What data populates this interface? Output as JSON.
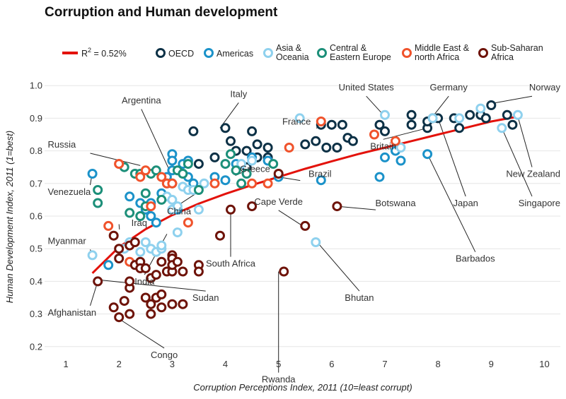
{
  "chart_data": {
    "type": "scatter",
    "title": "Corruption and Human development",
    "xlabel": "Corruption Perceptions Index, 2011 (10=least corrupt)",
    "ylabel": "Human Development Index, 2011 (1=best)",
    "xlim": [
      0.6,
      10.3
    ],
    "ylim": [
      0.18,
      1.02
    ],
    "x_ticks": [
      1,
      2,
      3,
      4,
      5,
      6,
      7,
      8,
      9,
      10
    ],
    "y_ticks": [
      0.2,
      0.3,
      0.4,
      0.5,
      0.6,
      0.7,
      0.8,
      0.9,
      1.0
    ],
    "x_tick_labels": [
      "1",
      "2",
      "3",
      "4",
      "5",
      "6",
      "7",
      "8",
      "9",
      "10"
    ],
    "y_tick_labels": [
      "0.2",
      "0.3",
      "0.4",
      "0.5",
      "0.6",
      "0.7",
      "0.8",
      "0.9",
      "1.0"
    ],
    "grid": "horizontal",
    "trend": {
      "label_base": "R",
      "label_sup": "2",
      "label_rest": " = 0.52%",
      "color": "#e3120b",
      "points": [
        [
          1.5,
          0.425
        ],
        [
          2,
          0.505
        ],
        [
          2.5,
          0.56
        ],
        [
          3,
          0.603
        ],
        [
          3.5,
          0.638
        ],
        [
          4,
          0.668
        ],
        [
          4.5,
          0.695
        ],
        [
          5,
          0.72
        ],
        [
          5.5,
          0.745
        ],
        [
          6,
          0.768
        ],
        [
          6.5,
          0.79
        ],
        [
          7,
          0.81
        ],
        [
          7.5,
          0.83
        ],
        [
          8,
          0.85
        ],
        [
          8.5,
          0.87
        ],
        [
          9,
          0.89
        ],
        [
          9.5,
          0.905
        ]
      ]
    },
    "series": [
      {
        "name_lines": [
          "OECD"
        ],
        "color": "#0d3146",
        "points": [
          [
            3.4,
            0.86
          ],
          [
            3.5,
            0.76
          ],
          [
            3.8,
            0.78
          ],
          [
            4.0,
            0.87
          ],
          [
            4.1,
            0.83
          ],
          [
            4.2,
            0.8
          ],
          [
            4.4,
            0.8
          ],
          [
            4.4,
            0.75
          ],
          [
            4.5,
            0.86
          ],
          [
            4.6,
            0.78
          ],
          [
            4.6,
            0.82
          ],
          [
            4.8,
            0.78
          ],
          [
            4.8,
            0.81
          ],
          [
            5.5,
            0.82
          ],
          [
            5.7,
            0.83
          ],
          [
            5.8,
            0.88
          ],
          [
            5.9,
            0.81
          ],
          [
            6.0,
            0.88
          ],
          [
            6.1,
            0.81
          ],
          [
            6.2,
            0.88
          ],
          [
            6.3,
            0.84
          ],
          [
            6.4,
            0.83
          ],
          [
            6.9,
            0.88
          ],
          [
            7.0,
            0.86
          ],
          [
            7.5,
            0.91
          ],
          [
            7.5,
            0.88
          ],
          [
            7.8,
            0.87
          ],
          [
            7.8,
            0.89
          ],
          [
            7.9,
            0.9
          ],
          [
            8.0,
            0.9
          ],
          [
            8.3,
            0.9
          ],
          [
            8.4,
            0.87
          ],
          [
            8.6,
            0.91
          ],
          [
            8.8,
            0.91
          ],
          [
            8.9,
            0.9
          ],
          [
            9.0,
            0.94
          ],
          [
            9.3,
            0.91
          ],
          [
            9.4,
            0.88
          ]
        ]
      },
      {
        "name_lines": [
          "Americas"
        ],
        "color": "#1b92c9",
        "points": [
          [
            1.5,
            0.73
          ],
          [
            1.8,
            0.45
          ],
          [
            2.2,
            0.66
          ],
          [
            2.4,
            0.64
          ],
          [
            2.5,
            0.62
          ],
          [
            2.6,
            0.64
          ],
          [
            2.6,
            0.6
          ],
          [
            2.7,
            0.58
          ],
          [
            2.8,
            0.67
          ],
          [
            2.9,
            0.72
          ],
          [
            3.0,
            0.79
          ],
          [
            3.0,
            0.77
          ],
          [
            3.0,
            0.74
          ],
          [
            3.1,
            0.62
          ],
          [
            3.2,
            0.76
          ],
          [
            3.2,
            0.73
          ],
          [
            3.3,
            0.77
          ],
          [
            3.3,
            0.72
          ],
          [
            3.4,
            0.7
          ],
          [
            3.8,
            0.72
          ],
          [
            4.0,
            0.71
          ],
          [
            4.2,
            0.76
          ],
          [
            4.5,
            0.78
          ],
          [
            4.8,
            0.77
          ],
          [
            5.0,
            0.72
          ],
          [
            5.8,
            0.71
          ],
          [
            6.9,
            0.72
          ],
          [
            7.0,
            0.78
          ],
          [
            7.2,
            0.8
          ],
          [
            7.3,
            0.77
          ],
          [
            7.8,
            0.79
          ]
        ]
      },
      {
        "name_lines": [
          "Asia &",
          "Oceania"
        ],
        "color": "#8fd1ee",
        "points": [
          [
            1.5,
            0.48
          ],
          [
            1.6,
            0.4
          ],
          [
            2.1,
            0.5
          ],
          [
            2.2,
            0.52
          ],
          [
            2.4,
            0.49
          ],
          [
            2.5,
            0.52
          ],
          [
            2.6,
            0.5
          ],
          [
            2.7,
            0.49
          ],
          [
            2.8,
            0.5
          ],
          [
            2.8,
            0.51
          ],
          [
            2.9,
            0.66
          ],
          [
            3.0,
            0.62
          ],
          [
            3.0,
            0.65
          ],
          [
            3.1,
            0.55
          ],
          [
            3.1,
            0.63
          ],
          [
            3.2,
            0.69
          ],
          [
            3.3,
            0.68
          ],
          [
            3.4,
            0.68
          ],
          [
            3.5,
            0.62
          ],
          [
            3.6,
            0.7
          ],
          [
            4.3,
            0.76
          ],
          [
            4.5,
            0.77
          ],
          [
            5.7,
            0.52
          ],
          [
            5.4,
            0.9
          ],
          [
            7.0,
            0.91
          ],
          [
            7.3,
            0.81
          ],
          [
            7.9,
            0.9
          ],
          [
            8.4,
            0.9
          ],
          [
            8.8,
            0.93
          ],
          [
            9.2,
            0.87
          ],
          [
            9.5,
            0.91
          ]
        ]
      },
      {
        "name_lines": [
          "Central &",
          "Eastern Europe"
        ],
        "color": "#1c8f79",
        "points": [
          [
            1.6,
            0.68
          ],
          [
            1.6,
            0.64
          ],
          [
            2.1,
            0.75
          ],
          [
            2.2,
            0.61
          ],
          [
            2.3,
            0.73
          ],
          [
            2.4,
            0.73
          ],
          [
            2.4,
            0.6
          ],
          [
            2.5,
            0.63
          ],
          [
            2.5,
            0.67
          ],
          [
            2.6,
            0.73
          ],
          [
            2.7,
            0.74
          ],
          [
            2.8,
            0.65
          ],
          [
            2.9,
            0.7
          ],
          [
            3.0,
            0.7
          ],
          [
            3.1,
            0.74
          ],
          [
            3.2,
            0.73
          ],
          [
            3.3,
            0.76
          ],
          [
            3.5,
            0.68
          ],
          [
            4.0,
            0.76
          ],
          [
            4.1,
            0.79
          ],
          [
            4.2,
            0.74
          ],
          [
            4.4,
            0.73
          ],
          [
            4.3,
            0.7
          ],
          [
            4.9,
            0.76
          ]
        ]
      },
      {
        "name_lines": [
          "Middle East &",
          "north Africa"
        ],
        "color": "#f0532c",
        "points": [
          [
            1.8,
            0.57
          ],
          [
            2.0,
            0.76
          ],
          [
            2.0,
            0.76
          ],
          [
            2.2,
            0.46
          ],
          [
            2.4,
            0.72
          ],
          [
            2.5,
            0.74
          ],
          [
            2.6,
            0.63
          ],
          [
            2.8,
            0.72
          ],
          [
            2.9,
            0.7
          ],
          [
            3.0,
            0.7
          ],
          [
            3.3,
            0.58
          ],
          [
            3.8,
            0.7
          ],
          [
            4.5,
            0.7
          ],
          [
            4.8,
            0.7
          ],
          [
            5.2,
            0.81
          ],
          [
            5.8,
            0.89
          ],
          [
            6.8,
            0.85
          ],
          [
            7.2,
            0.83
          ]
        ]
      },
      {
        "name_lines": [
          "Sub-Saharan",
          "Africa"
        ],
        "color": "#6e1309",
        "points": [
          [
            1.6,
            0.4
          ],
          [
            1.9,
            0.54
          ],
          [
            1.9,
            0.32
          ],
          [
            2.0,
            0.29
          ],
          [
            2.0,
            0.47
          ],
          [
            2.0,
            0.5
          ],
          [
            2.1,
            0.34
          ],
          [
            2.2,
            0.3
          ],
          [
            2.2,
            0.38
          ],
          [
            2.2,
            0.4
          ],
          [
            2.2,
            0.51
          ],
          [
            2.3,
            0.45
          ],
          [
            2.3,
            0.52
          ],
          [
            2.4,
            0.46
          ],
          [
            2.4,
            0.44
          ],
          [
            2.5,
            0.44
          ],
          [
            2.5,
            0.35
          ],
          [
            2.6,
            0.41
          ],
          [
            2.6,
            0.33
          ],
          [
            2.6,
            0.3
          ],
          [
            2.7,
            0.42
          ],
          [
            2.7,
            0.35
          ],
          [
            2.8,
            0.36
          ],
          [
            2.8,
            0.32
          ],
          [
            2.8,
            0.46
          ],
          [
            2.9,
            0.43
          ],
          [
            3.0,
            0.48
          ],
          [
            3.0,
            0.47
          ],
          [
            3.0,
            0.43
          ],
          [
            3.0,
            0.45
          ],
          [
            3.0,
            0.33
          ],
          [
            3.1,
            0.46
          ],
          [
            3.2,
            0.33
          ],
          [
            3.2,
            0.43
          ],
          [
            3.5,
            0.45
          ],
          [
            3.5,
            0.43
          ],
          [
            3.9,
            0.54
          ],
          [
            4.1,
            0.62
          ],
          [
            4.5,
            0.63
          ],
          [
            5.0,
            0.73
          ],
          [
            5.1,
            0.43
          ],
          [
            5.5,
            0.57
          ],
          [
            6.1,
            0.63
          ]
        ]
      }
    ],
    "annotations": [
      {
        "label": "Italy",
        "point": [
          3.9,
          0.87
        ],
        "text": [
          4.25,
          0.965
        ],
        "anchor": "middle"
      },
      {
        "label": "Argentina",
        "point": [
          2.95,
          0.74
        ],
        "text": [
          2.42,
          0.945
        ],
        "anchor": "middle"
      },
      {
        "label": "Russia",
        "point": [
          2.4,
          0.755
        ],
        "text": [
          0.66,
          0.81
        ],
        "anchor": "start"
      },
      {
        "label": "Venezuela",
        "point": [
          1.5,
          0.735
        ],
        "text": [
          0.66,
          0.665
        ],
        "anchor": "start"
      },
      {
        "label": "Iraq",
        "point": [
          2.0,
          0.575
        ],
        "text": [
          2.38,
          0.57
        ],
        "anchor": "middle"
      },
      {
        "label": "Myanmar",
        "point": [
          1.5,
          0.48
        ],
        "text": [
          0.66,
          0.515
        ],
        "anchor": "start"
      },
      {
        "label": "India",
        "point": [
          2.9,
          0.545
        ],
        "text": [
          2.48,
          0.39
        ],
        "anchor": "middle"
      },
      {
        "label": "China",
        "point": [
          3.5,
          0.675
        ],
        "text": [
          3.13,
          0.605
        ],
        "anchor": "middle"
      },
      {
        "label": "Afghanistan",
        "point": [
          1.6,
          0.4
        ],
        "text": [
          0.66,
          0.295
        ],
        "anchor": "start"
      },
      {
        "label": "Congo",
        "point": [
          2.0,
          0.285
        ],
        "text": [
          2.85,
          0.165
        ],
        "anchor": "middle"
      },
      {
        "label": "Sudan",
        "point": [
          1.6,
          0.405
        ],
        "text": [
          3.63,
          0.34
        ],
        "anchor": "middle"
      },
      {
        "label": "South Africa",
        "point": [
          4.1,
          0.62
        ],
        "text": [
          4.1,
          0.445
        ],
        "anchor": "middle"
      },
      {
        "label": "Rwanda",
        "point": [
          5.0,
          0.43
        ],
        "text": [
          5.0,
          0.09
        ],
        "anchor": "middle"
      },
      {
        "label": "Cape Verde",
        "point": [
          5.5,
          0.565
        ],
        "text": [
          5.0,
          0.635
        ],
        "anchor": "middle"
      },
      {
        "label": "Greece",
        "point": [
          4.4,
          0.74
        ],
        "text": [
          4.56,
          0.735
        ],
        "anchor": "middle"
      },
      {
        "label": "Brazil",
        "point": [
          5.0,
          0.72
        ],
        "text": [
          5.78,
          0.72
        ],
        "anchor": "middle"
      },
      {
        "label": "Bhutan",
        "point": [
          5.7,
          0.525
        ],
        "text": [
          6.52,
          0.34
        ],
        "anchor": "middle"
      },
      {
        "label": "Botswana",
        "point": [
          6.1,
          0.63
        ],
        "text": [
          7.2,
          0.63
        ],
        "anchor": "middle"
      },
      {
        "label": "France",
        "point": [
          5.8,
          0.885
        ],
        "text": [
          5.34,
          0.88
        ],
        "anchor": "middle"
      },
      {
        "label": "United States",
        "point": [
          7.0,
          0.905
        ],
        "text": [
          6.65,
          0.985
        ],
        "anchor": "middle"
      },
      {
        "label": "Britain",
        "point": [
          7.8,
          0.87
        ],
        "text": [
          6.97,
          0.805
        ],
        "anchor": "middle"
      },
      {
        "label": "Germany",
        "point": [
          7.9,
          0.905
        ],
        "text": [
          8.2,
          0.985
        ],
        "anchor": "middle"
      },
      {
        "label": "Norway",
        "point": [
          9.0,
          0.945
        ],
        "text": [
          10.3,
          0.985
        ],
        "anchor": "end"
      },
      {
        "label": "Japan",
        "point": [
          8.0,
          0.9
        ],
        "text": [
          8.52,
          0.63
        ],
        "anchor": "middle"
      },
      {
        "label": "Barbados",
        "point": [
          7.8,
          0.79
        ],
        "text": [
          8.7,
          0.46
        ],
        "anchor": "middle"
      },
      {
        "label": "New Zealand",
        "point": [
          9.5,
          0.905
        ],
        "text": [
          10.3,
          0.72
        ],
        "anchor": "end"
      },
      {
        "label": "Singapore",
        "point": [
          9.2,
          0.87
        ],
        "text": [
          10.3,
          0.63
        ],
        "anchor": "end"
      }
    ]
  }
}
